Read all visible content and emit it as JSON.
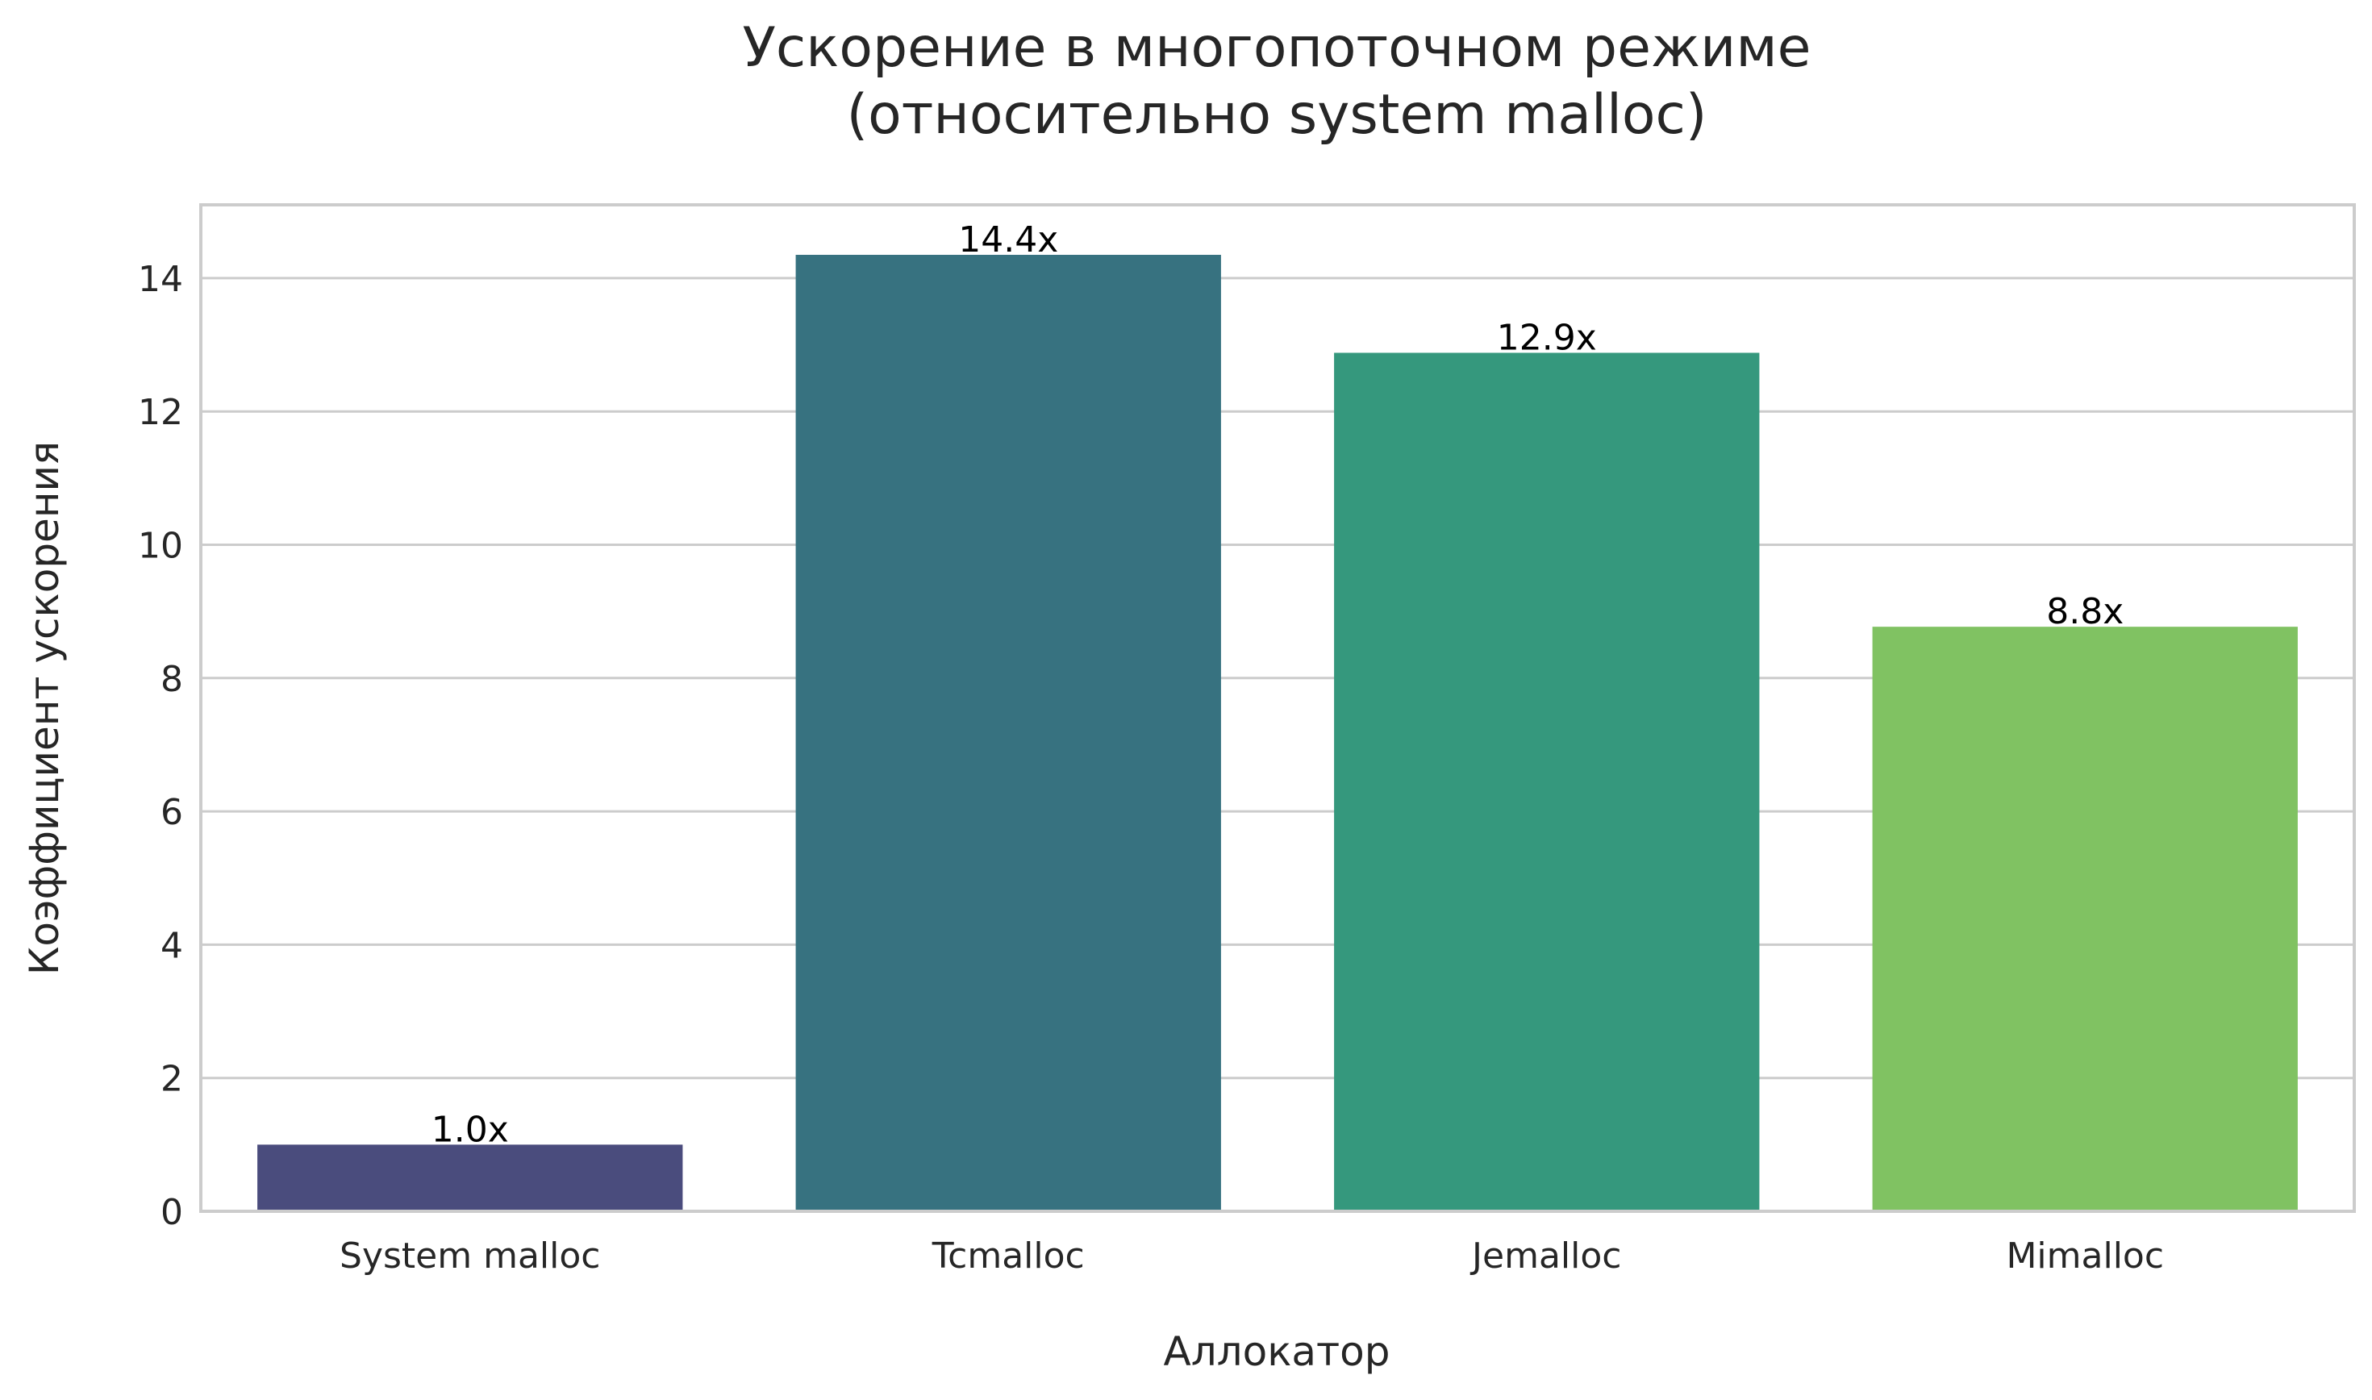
{
  "chart_data": {
    "type": "bar",
    "title": [
      "Ускорение в многопоточном режиме",
      "(относительно system malloc)"
    ],
    "xlabel": "Аллокатор",
    "ylabel": "Коэффициент ускорения",
    "categories": [
      "System malloc",
      "Tcmalloc",
      "Jemalloc",
      "Mimalloc"
    ],
    "values": [
      1.0,
      14.35,
      12.88,
      8.77
    ],
    "data_labels": [
      "1.0x",
      "14.4x",
      "12.9x",
      "8.8x"
    ],
    "ylim": [
      0,
      15.1
    ],
    "yticks": [
      0,
      2,
      4,
      6,
      8,
      10,
      12,
      14
    ],
    "grid": "horizontal",
    "colors": [
      "#4a4c7d",
      "#377280",
      "#35987d",
      "#80c262"
    ]
  }
}
